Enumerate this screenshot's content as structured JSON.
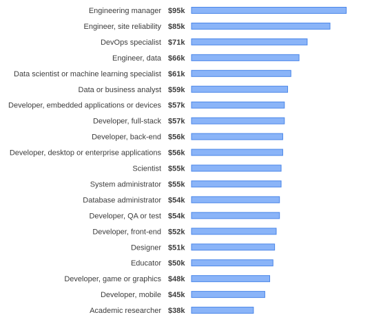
{
  "chart_data": {
    "type": "bar",
    "orientation": "horizontal",
    "title": "",
    "xlabel": "",
    "ylabel": "",
    "xlim": [
      0,
      100
    ],
    "grid": false,
    "legend": "none",
    "bar_fill_color": "#8ab4f8",
    "bar_stroke_color": "#4a86e8",
    "categories": [
      "Engineering manager",
      "Engineer, site reliability",
      "DevOps specialist",
      "Engineer, data",
      "Data scientist or machine learning specialist",
      "Data or business analyst",
      "Developer, embedded applications or devices",
      "Developer, full-stack",
      "Developer, back-end",
      "Developer, desktop or enterprise applications",
      "Scientist",
      "System administrator",
      "Database administrator",
      "Developer, QA or test",
      "Developer, front-end",
      "Designer",
      "Educator",
      "Developer, game or graphics",
      "Developer, mobile",
      "Academic researcher"
    ],
    "values": [
      95,
      85,
      71,
      66,
      61,
      59,
      57,
      57,
      56,
      56,
      55,
      55,
      54,
      54,
      52,
      51,
      50,
      48,
      45,
      38
    ],
    "value_labels": [
      "$95k",
      "$85k",
      "$71k",
      "$66k",
      "$61k",
      "$59k",
      "$57k",
      "$57k",
      "$56k",
      "$56k",
      "$55k",
      "$55k",
      "$54k",
      "$54k",
      "$52k",
      "$51k",
      "$50k",
      "$48k",
      "$45k",
      "$38k"
    ]
  }
}
